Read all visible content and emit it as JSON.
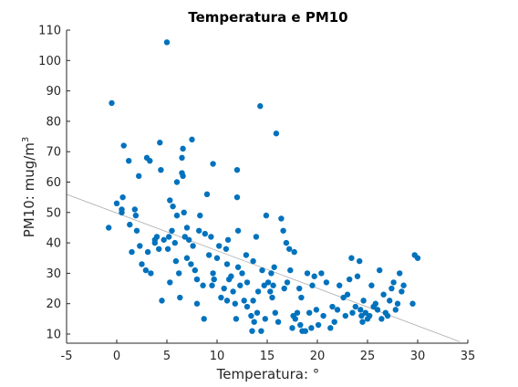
{
  "chart_data": {
    "type": "scatter",
    "title": "Temperatura e PM10",
    "xlabel": "Temperatura: °",
    "ylabel_main": "PM10: mug/m",
    "ylabel_sup": "3",
    "xlim": [
      -5,
      35
    ],
    "ylim": [
      7,
      110
    ],
    "xticks": [
      -5,
      0,
      5,
      10,
      15,
      20,
      25,
      30,
      35
    ],
    "yticks": [
      10,
      20,
      30,
      40,
      50,
      60,
      70,
      80,
      90,
      100,
      110
    ],
    "grid": false,
    "marker_color": "#0072BD",
    "trend_color": "#aaaaaa",
    "trend_line": {
      "x": [
        -5,
        34.2
      ],
      "y": [
        56,
        7.5
      ]
    },
    "points": [
      [
        -0.5,
        86
      ],
      [
        -0.8,
        45
      ],
      [
        0,
        53
      ],
      [
        0.5,
        51
      ],
      [
        0.5,
        50
      ],
      [
        0.6,
        55
      ],
      [
        0.7,
        72
      ],
      [
        1.2,
        67
      ],
      [
        1.3,
        46
      ],
      [
        1.5,
        37
      ],
      [
        1.8,
        51
      ],
      [
        1.9,
        49
      ],
      [
        2,
        44
      ],
      [
        2.2,
        62
      ],
      [
        2.3,
        39
      ],
      [
        2.5,
        33
      ],
      [
        2.9,
        31
      ],
      [
        3,
        68
      ],
      [
        3.1,
        37
      ],
      [
        3.3,
        67
      ],
      [
        3.4,
        30
      ],
      [
        3.8,
        41
      ],
      [
        3.8,
        40
      ],
      [
        4,
        42
      ],
      [
        4.2,
        38
      ],
      [
        4.3,
        73
      ],
      [
        4.4,
        64
      ],
      [
        4.5,
        21
      ],
      [
        4.7,
        41
      ],
      [
        5,
        106
      ],
      [
        5.1,
        38
      ],
      [
        5.2,
        42
      ],
      [
        5.3,
        27
      ],
      [
        5.3,
        54
      ],
      [
        5.5,
        44
      ],
      [
        5.6,
        52
      ],
      [
        5.8,
        40
      ],
      [
        5.9,
        34
      ],
      [
        6,
        49
      ],
      [
        6,
        60
      ],
      [
        6.2,
        30
      ],
      [
        6.3,
        22
      ],
      [
        6.5,
        63
      ],
      [
        6.5,
        68
      ],
      [
        6.6,
        71
      ],
      [
        6.6,
        62
      ],
      [
        6.7,
        50
      ],
      [
        6.8,
        42
      ],
      [
        7,
        35
      ],
      [
        7,
        45
      ],
      [
        7.2,
        41
      ],
      [
        7.4,
        33
      ],
      [
        7.5,
        74
      ],
      [
        7.6,
        39
      ],
      [
        7.8,
        31
      ],
      [
        8,
        28
      ],
      [
        8,
        20
      ],
      [
        8.2,
        44
      ],
      [
        8.3,
        49
      ],
      [
        8.6,
        26
      ],
      [
        8.7,
        15
      ],
      [
        8.8,
        43
      ],
      [
        9,
        56
      ],
      [
        9.2,
        36
      ],
      [
        9.4,
        42
      ],
      [
        9.5,
        26
      ],
      [
        9.6,
        66
      ],
      [
        9.6,
        30
      ],
      [
        9.7,
        28
      ],
      [
        10,
        35
      ],
      [
        10.2,
        39
      ],
      [
        10.4,
        22
      ],
      [
        10.7,
        25
      ],
      [
        10.9,
        38
      ],
      [
        11,
        33
      ],
      [
        11,
        21
      ],
      [
        11.1,
        41
      ],
      [
        11.2,
        28
      ],
      [
        11.4,
        29
      ],
      [
        11.6,
        24
      ],
      [
        11.8,
        20
      ],
      [
        11.9,
        15
      ],
      [
        12,
        64
      ],
      [
        12,
        55
      ],
      [
        12.1,
        44
      ],
      [
        12.1,
        32
      ],
      [
        12.3,
        26
      ],
      [
        12.5,
        30
      ],
      [
        12.7,
        21
      ],
      [
        12.9,
        36
      ],
      [
        13,
        19
      ],
      [
        13,
        27
      ],
      [
        13.4,
        16
      ],
      [
        13.5,
        11
      ],
      [
        13.6,
        34
      ],
      [
        13.6,
        21
      ],
      [
        13.7,
        14
      ],
      [
        13.9,
        42
      ],
      [
        14,
        17
      ],
      [
        14.1,
        24
      ],
      [
        14.3,
        85
      ],
      [
        14.4,
        11
      ],
      [
        14.5,
        31
      ],
      [
        14.7,
        26
      ],
      [
        14.8,
        15
      ],
      [
        14.9,
        49
      ],
      [
        15.1,
        27
      ],
      [
        15.3,
        24
      ],
      [
        15.4,
        30
      ],
      [
        15.5,
        22
      ],
      [
        15.6,
        26
      ],
      [
        15.7,
        32
      ],
      [
        15.8,
        17
      ],
      [
        15.9,
        76
      ],
      [
        16.1,
        14
      ],
      [
        16.4,
        48
      ],
      [
        16.6,
        44
      ],
      [
        16.7,
        25
      ],
      [
        16.9,
        40
      ],
      [
        17,
        27
      ],
      [
        17.2,
        38
      ],
      [
        17.3,
        31
      ],
      [
        17.5,
        12
      ],
      [
        17.6,
        16
      ],
      [
        17.7,
        37
      ],
      [
        17.8,
        15
      ],
      [
        18,
        17
      ],
      [
        18.2,
        25
      ],
      [
        18.3,
        13
      ],
      [
        18.4,
        22
      ],
      [
        18.5,
        11
      ],
      [
        18.8,
        11
      ],
      [
        19,
        30
      ],
      [
        19.2,
        17
      ],
      [
        19.4,
        12
      ],
      [
        19.5,
        26
      ],
      [
        19.7,
        29
      ],
      [
        19.9,
        18
      ],
      [
        20.1,
        13
      ],
      [
        20.4,
        30
      ],
      [
        20.6,
        16
      ],
      [
        20.9,
        27
      ],
      [
        21.3,
        12
      ],
      [
        21.5,
        19
      ],
      [
        21.7,
        14
      ],
      [
        22,
        18
      ],
      [
        22.2,
        26
      ],
      [
        22.6,
        22
      ],
      [
        22.8,
        16
      ],
      [
        23,
        23
      ],
      [
        23.2,
        28
      ],
      [
        23.4,
        35
      ],
      [
        23.5,
        17
      ],
      [
        23.8,
        19
      ],
      [
        24,
        29
      ],
      [
        24.2,
        34
      ],
      [
        24.3,
        18
      ],
      [
        24.4,
        16
      ],
      [
        24.5,
        14
      ],
      [
        24.6,
        21
      ],
      [
        24.8,
        17
      ],
      [
        25,
        15
      ],
      [
        25.2,
        16
      ],
      [
        25.4,
        26
      ],
      [
        25.6,
        19
      ],
      [
        25.8,
        20
      ],
      [
        26,
        18
      ],
      [
        26.2,
        31
      ],
      [
        26.4,
        15
      ],
      [
        26.6,
        23
      ],
      [
        26.8,
        17
      ],
      [
        27,
        16
      ],
      [
        27.2,
        21
      ],
      [
        27.4,
        25
      ],
      [
        27.6,
        27
      ],
      [
        27.8,
        18
      ],
      [
        28,
        20
      ],
      [
        28.2,
        30
      ],
      [
        28.4,
        24
      ],
      [
        28.6,
        26
      ],
      [
        29.5,
        20
      ],
      [
        29.7,
        36
      ],
      [
        30,
        35
      ]
    ]
  }
}
